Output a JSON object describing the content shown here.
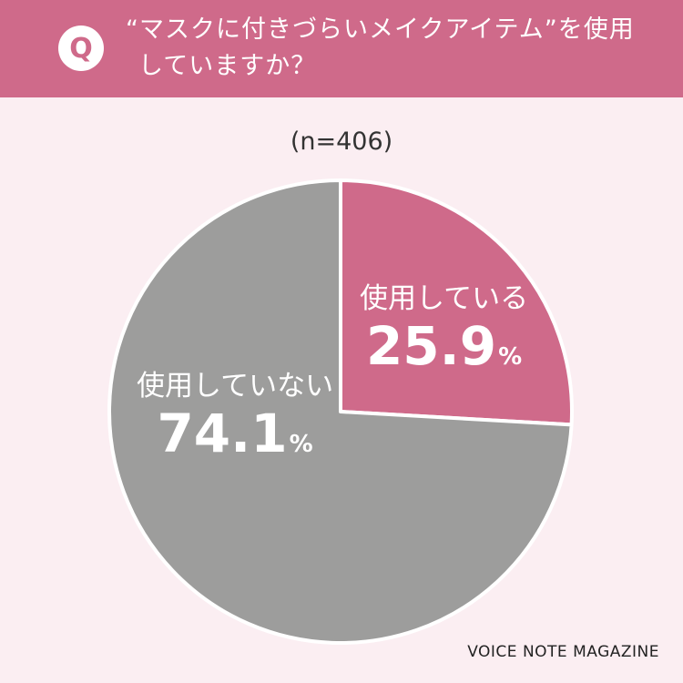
{
  "header": {
    "badge": "Q",
    "question_line1": "“マスクに付きづらいメイクアイテム”を使用",
    "question_line2": "していますか？"
  },
  "sample_size": "(n=406)",
  "credit": "VOICE NOTE MAGAZINE",
  "colors": {
    "header_bg": "#cf6a8a",
    "background": "#fbeef2",
    "using": "#cf6a8a",
    "not_using": "#9d9d9c"
  },
  "chart_data": {
    "type": "pie",
    "categories": [
      "使用している",
      "使用していない"
    ],
    "values": [
      25.9,
      74.1
    ],
    "value_labels": [
      "25.9",
      "74.1"
    ],
    "unit": "%",
    "colors": [
      "#cf6a8a",
      "#9d9d9c"
    ],
    "start": "12 o'clock",
    "direction": "clockwise"
  }
}
